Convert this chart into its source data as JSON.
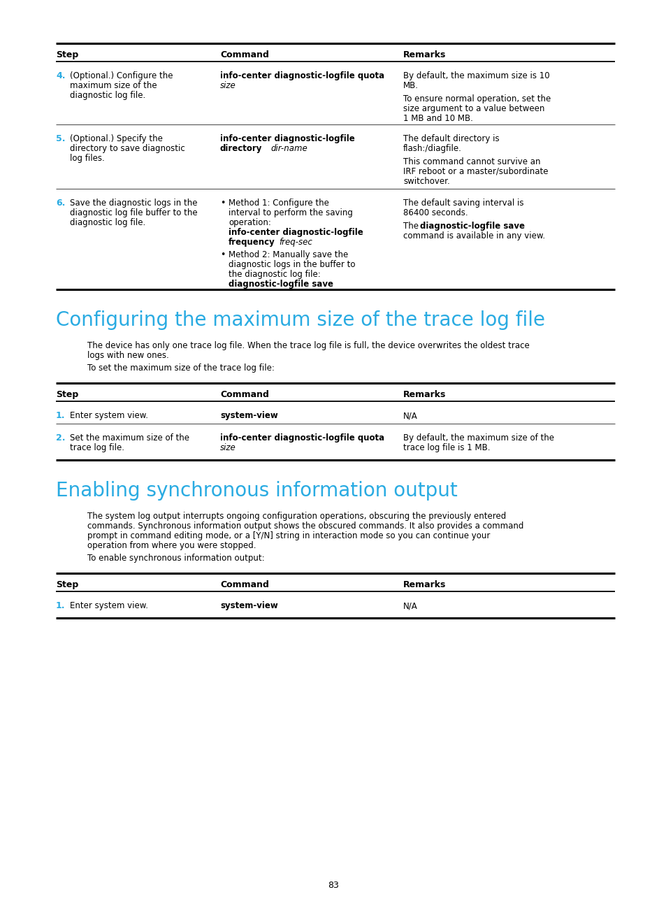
{
  "bg_color": "#ffffff",
  "text_color": "#000000",
  "cyan_color": "#29abe2",
  "page_number": "83",
  "section1_title": "Configuring the maximum size of the trace log file",
  "section2_title": "Enabling synchronous information output",
  "table0_header": [
    "Step",
    "Command",
    "Remarks"
  ],
  "table1_header": [
    "Step",
    "Command",
    "Remarks"
  ],
  "table2_header": [
    "Step",
    "Command",
    "Remarks"
  ]
}
